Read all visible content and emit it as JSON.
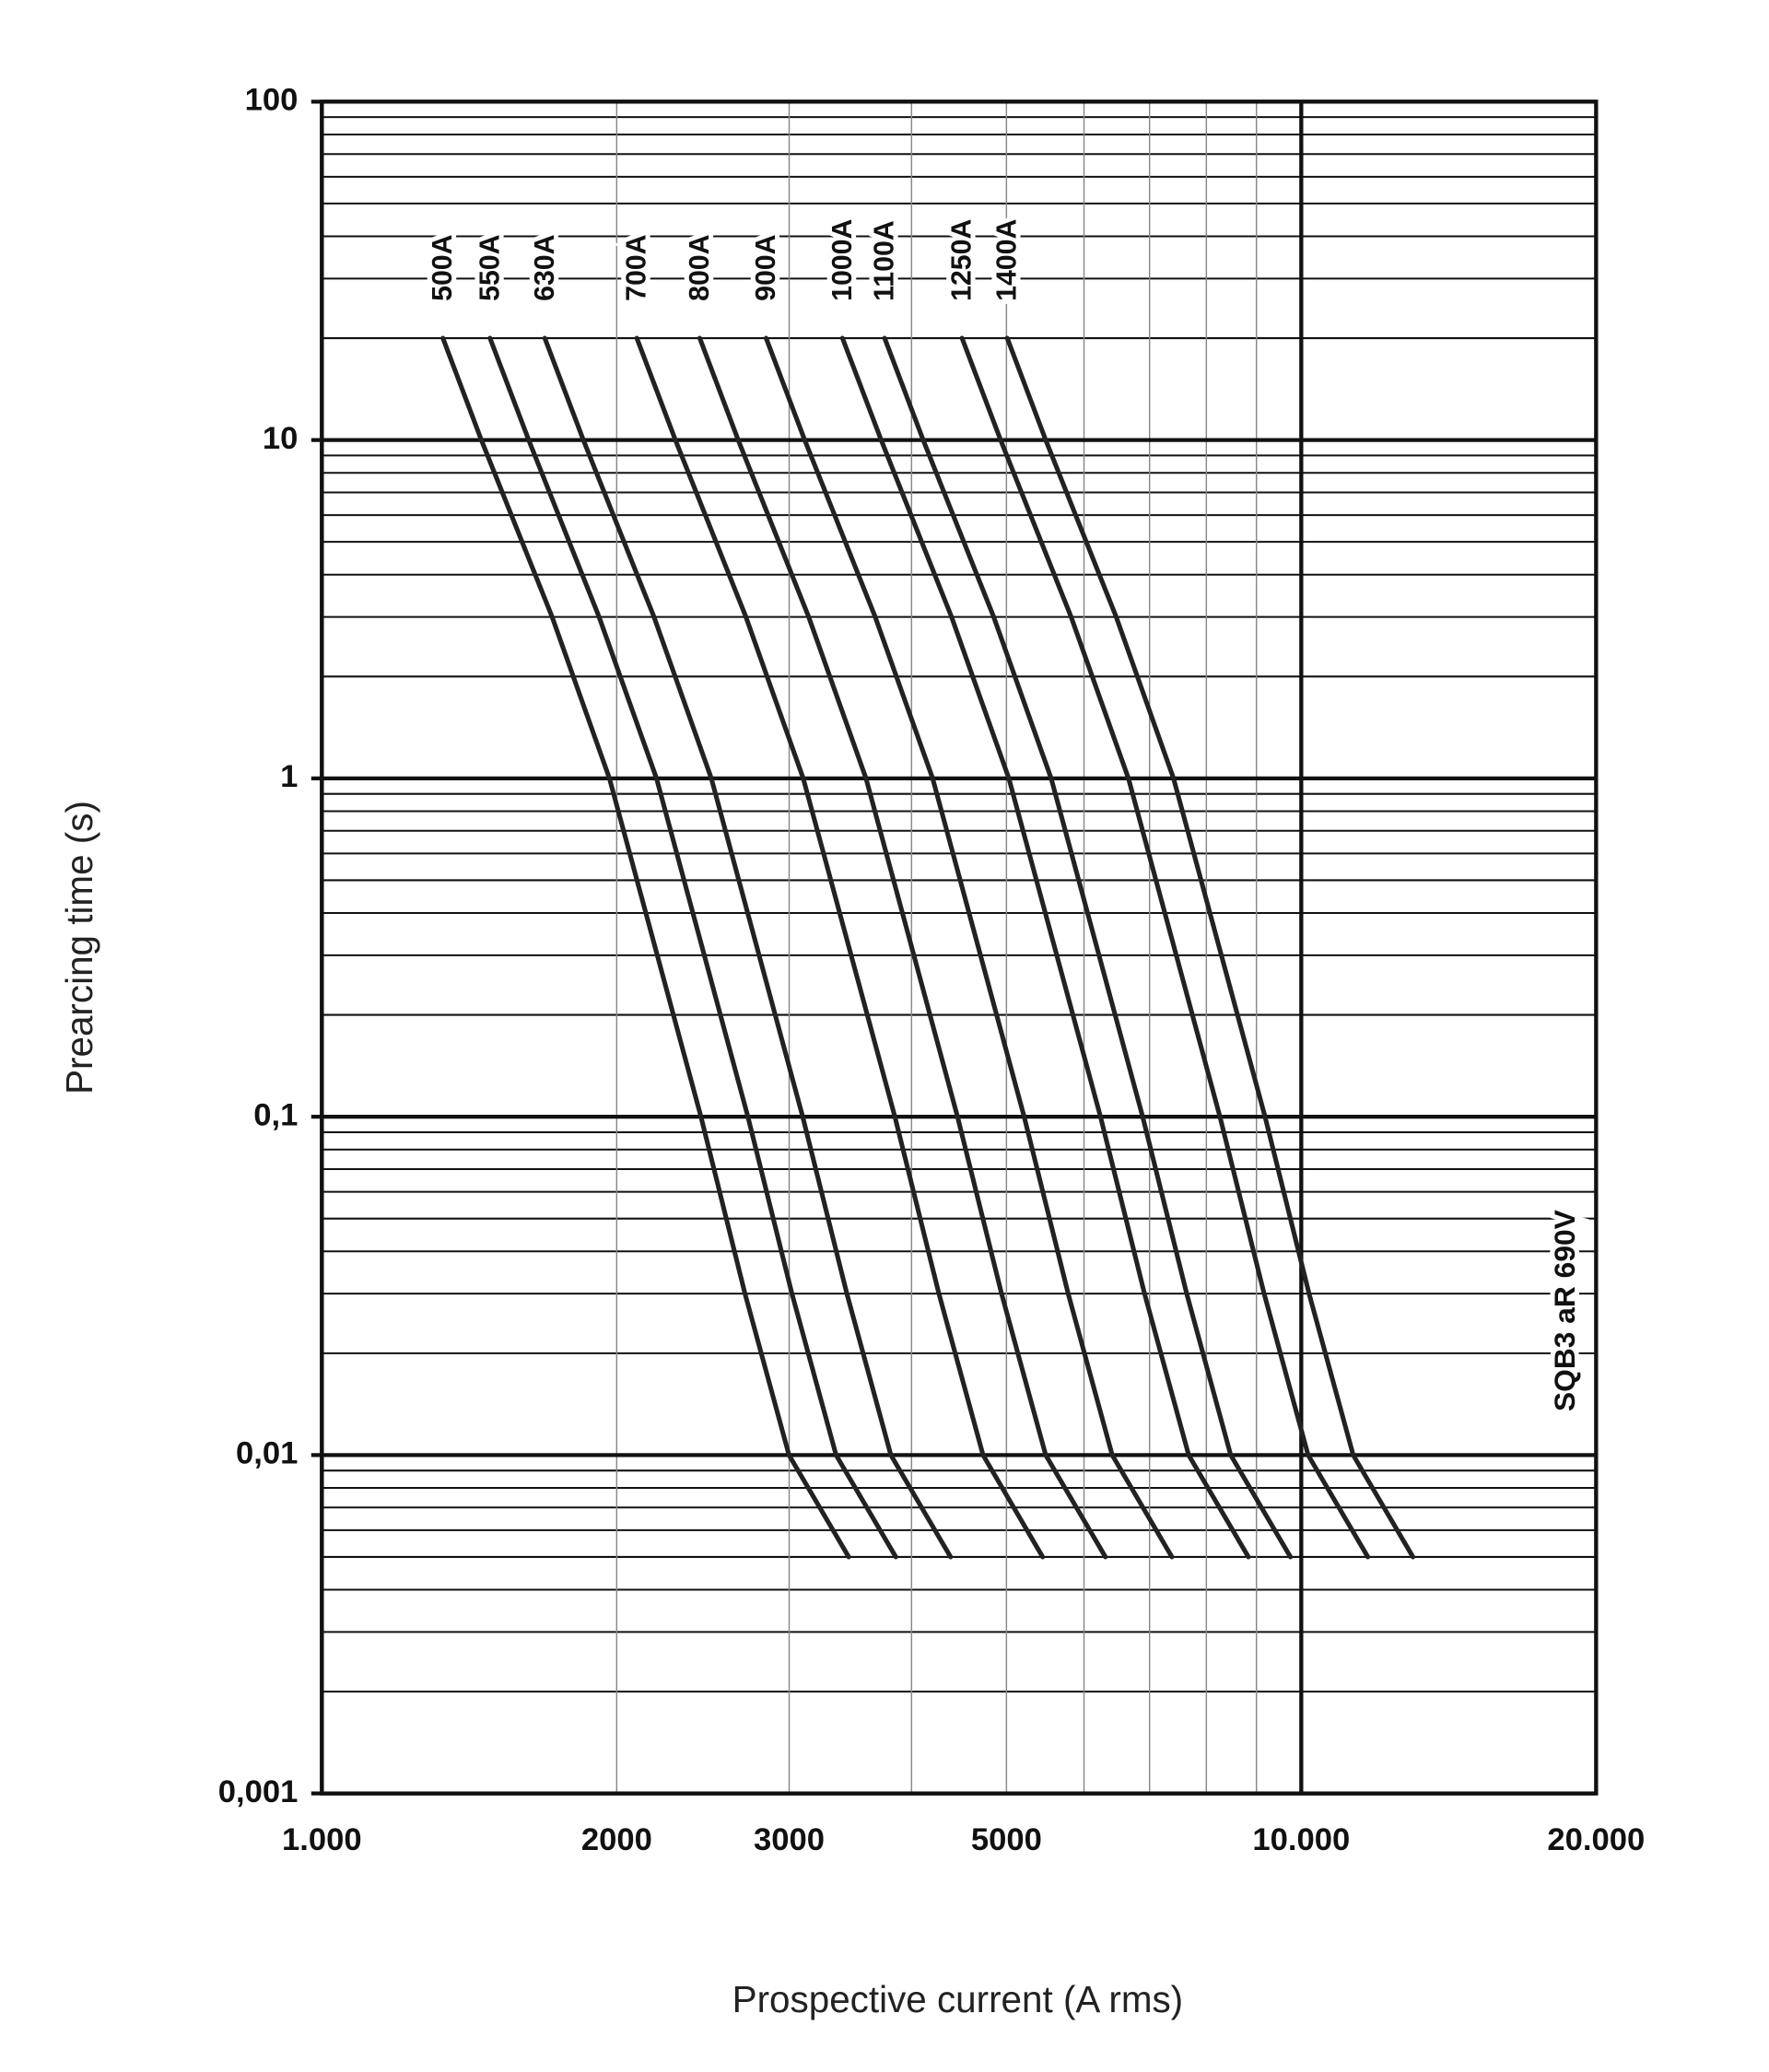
{
  "chart_data": {
    "type": "line",
    "x_label": "Prospective current (A rms)",
    "y_label": "Prearcing time (s)",
    "annotation": "SQB3 aR 690V",
    "xlog": true,
    "ylog": true,
    "grid": true,
    "xlim": [
      1000,
      20000
    ],
    "ylim": [
      0.001,
      100
    ],
    "xticks": [
      {
        "value": 1000,
        "label": "1.000"
      },
      2000,
      3000,
      5000,
      {
        "value": 10000,
        "label": "10.000"
      },
      {
        "value": 20000,
        "label": "20.000"
      }
    ],
    "yticks": [
      {
        "value": 0.001,
        "label": "0,001"
      },
      {
        "value": 0.01,
        "label": "0,01"
      },
      {
        "value": 0.1,
        "label": "0,1"
      },
      1,
      10,
      100
    ],
    "minor_xticks": [
      4000,
      6000,
      7000,
      8000,
      9000
    ],
    "minor_yticks": [
      0.002,
      0.003,
      0.004,
      0.005,
      0.006,
      0.007,
      0.008,
      0.009,
      0.02,
      0.03,
      0.04,
      0.05,
      0.06,
      0.07,
      0.08,
      0.09,
      0.2,
      0.3,
      0.4,
      0.5,
      0.6,
      0.7,
      0.8,
      0.9,
      2,
      3,
      4,
      5,
      6,
      7,
      8,
      9,
      20,
      30,
      40,
      50,
      60,
      70,
      80,
      90
    ],
    "series": [
      {
        "name": "500A",
        "color": "#222222",
        "x": [
          1329,
          1455,
          1718,
          1966,
          2438,
          2704,
          2999,
          3451
        ],
        "values": [
          20,
          10,
          3,
          1,
          0.1,
          0.03,
          0.01,
          0.005
        ]
      },
      {
        "name": "550A",
        "color": "#222222",
        "x": [
          1485,
          1626,
          1919,
          2196,
          2723,
          3020,
          3350,
          3855
        ],
        "values": [
          20,
          10,
          3,
          1,
          0.1,
          0.03,
          0.01,
          0.005
        ]
      },
      {
        "name": "630A",
        "color": "#222222",
        "x": [
          1689,
          1849,
          2183,
          2498,
          3097,
          3436,
          3811,
          4385
        ],
        "values": [
          20,
          10,
          3,
          1,
          0.1,
          0.03,
          0.01,
          0.005
        ]
      },
      {
        "name": "700A",
        "color": "#222222",
        "x": [
          2097,
          2296,
          2710,
          3101,
          3846,
          4266,
          4732,
          5445
        ],
        "values": [
          20,
          10,
          3,
          1,
          0.1,
          0.03,
          0.01,
          0.005
        ]
      },
      {
        "name": "800A",
        "color": "#222222",
        "x": [
          2431,
          2661,
          3141,
          3594,
          4457,
          4943,
          5483,
          6310
        ],
        "values": [
          20,
          10,
          3,
          1,
          0.1,
          0.03,
          0.01,
          0.005
        ]
      },
      {
        "name": "900A",
        "color": "#222222",
        "x": [
          2842,
          3112,
          3673,
          4204,
          5212,
          5781,
          6412,
          7379
        ],
        "values": [
          20,
          10,
          3,
          1,
          0.1,
          0.03,
          0.01,
          0.005
        ]
      },
      {
        "name": "1000A",
        "color": "#222222",
        "x": [
          3401,
          3724,
          4395,
          5029,
          6237,
          6918,
          7674,
          8831
        ],
        "values": [
          20,
          10,
          3,
          1,
          0.1,
          0.03,
          0.01,
          0.005
        ]
      },
      {
        "name": "1100A",
        "color": "#222222",
        "x": [
          3755,
          4111,
          4853,
          5554,
          6887,
          7638,
          8472,
          9750
        ],
        "values": [
          20,
          10,
          3,
          1,
          0.1,
          0.03,
          0.01,
          0.005
        ]
      },
      {
        "name": "1250A",
        "color": "#222222",
        "x": [
          4505,
          4932,
          5821,
          6660,
          8260,
          9162,
          10162,
          11695
        ],
        "values": [
          20,
          10,
          3,
          1,
          0.1,
          0.03,
          0.01,
          0.005
        ]
      },
      {
        "name": "1400A",
        "color": "#222222",
        "x": [
          5009,
          5483,
          6471,
          7405,
          9183,
          10186,
          11298,
          13002
        ],
        "values": [
          20,
          10,
          3,
          1,
          0.1,
          0.03,
          0.01,
          0.005
        ]
      }
    ]
  }
}
